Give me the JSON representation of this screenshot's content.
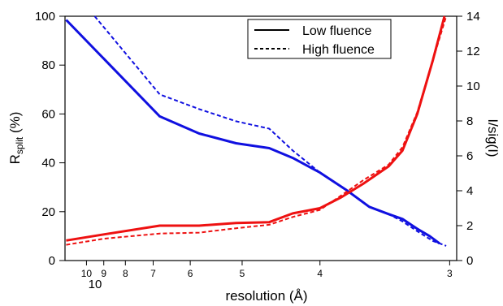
{
  "chart_data": {
    "type": "line",
    "x_axis": {
      "label": "resolution (Å)",
      "scale": "reciprocal",
      "ticks_minor": [
        10,
        9,
        8,
        7,
        6,
        5,
        4,
        3
      ],
      "tick_labels": [
        "10",
        "9",
        "8",
        "7",
        "6",
        "5",
        "4",
        "3"
      ],
      "major_tick_label": "10",
      "range": [
        11.6,
        2.96
      ]
    },
    "y_left": {
      "label_main": "R",
      "label_sub": "split",
      "label_suffix": " (%)",
      "range": [
        0,
        100
      ],
      "ticks": [
        0,
        20,
        40,
        60,
        80,
        100
      ]
    },
    "y_right": {
      "label": "I/sig(I)",
      "range": [
        0,
        14
      ],
      "ticks": [
        0,
        2,
        4,
        6,
        8,
        10,
        12,
        14
      ]
    },
    "legend": {
      "placement": "top-right",
      "entries": [
        {
          "label": "Low fluence",
          "style": "solid"
        },
        {
          "label": "High fluence",
          "style": "dashed"
        }
      ]
    },
    "colors": {
      "rsplit": "#1010e0",
      "isig": "#ee1111"
    },
    "series": [
      {
        "axis": "left",
        "quantity": "rsplit",
        "fluence": "low",
        "style": "solid",
        "color": "#1010e0",
        "x": [
          11.5,
          6.8,
          5.8,
          5.1,
          4.6,
          4.3,
          4.0,
          3.75,
          3.55,
          3.4,
          3.3,
          3.2,
          3.12,
          3.06
        ],
        "y": [
          98.5,
          59,
          52,
          48,
          46,
          42,
          36,
          29,
          22,
          19,
          17,
          13,
          10,
          7
        ]
      },
      {
        "axis": "left",
        "quantity": "rsplit",
        "fluence": "high",
        "style": "dashed",
        "color": "#1010e0",
        "x": [
          9.5,
          6.8,
          5.8,
          5.1,
          4.6,
          4.3,
          4.0,
          3.75,
          3.55,
          3.4,
          3.3,
          3.2,
          3.1,
          3.02
        ],
        "y": [
          100,
          68,
          62,
          57,
          54,
          45,
          36,
          29,
          22,
          19,
          16,
          12,
          8,
          6
        ]
      },
      {
        "axis": "right",
        "quantity": "isig",
        "fluence": "low",
        "style": "solid",
        "color": "#ee1111",
        "x": [
          11.5,
          9.0,
          6.8,
          5.8,
          5.1,
          4.6,
          4.3,
          4.0,
          3.8,
          3.6,
          3.4,
          3.3,
          3.2,
          3.1,
          3.03
        ],
        "y": [
          1.15,
          1.5,
          2.0,
          2.0,
          2.15,
          2.2,
          2.7,
          3.0,
          3.6,
          4.4,
          5.4,
          6.3,
          8.4,
          11.5,
          14.0
        ]
      },
      {
        "axis": "right",
        "quantity": "isig",
        "fluence": "high",
        "style": "dashed",
        "color": "#ee1111",
        "x": [
          11.5,
          9.0,
          6.8,
          5.8,
          5.1,
          4.6,
          4.3,
          4.0,
          3.8,
          3.6,
          3.4,
          3.3,
          3.2,
          3.1,
          3.02
        ],
        "y": [
          0.9,
          1.25,
          1.55,
          1.6,
          1.85,
          2.05,
          2.5,
          2.9,
          3.7,
          4.6,
          5.5,
          6.5,
          8.5,
          11.5,
          14.0
        ]
      }
    ]
  }
}
